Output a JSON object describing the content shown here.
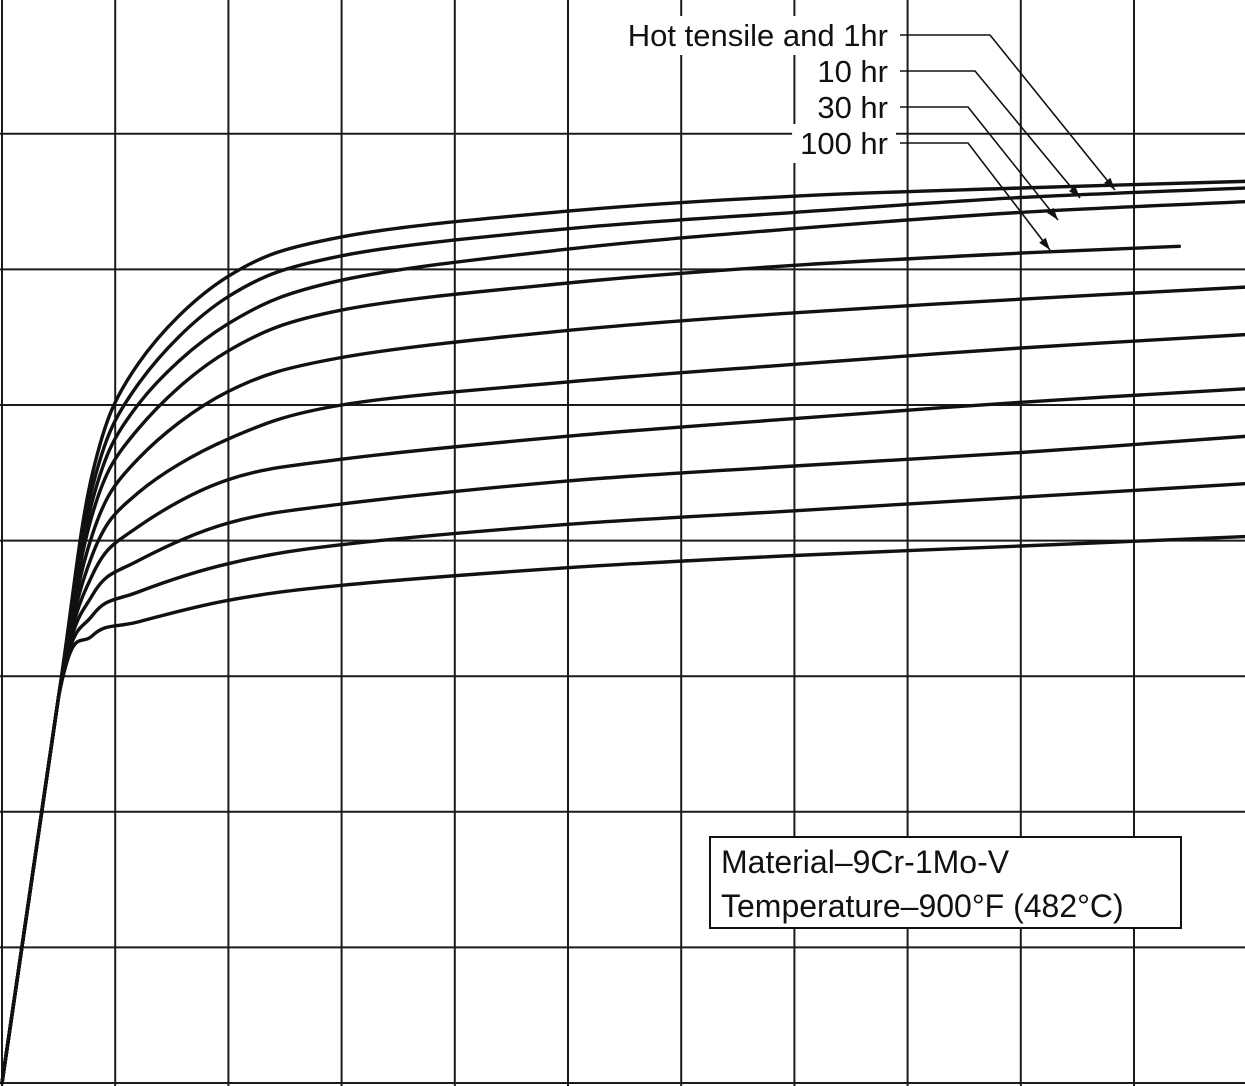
{
  "chart_data": {
    "type": "line",
    "title": "",
    "xlabel": "",
    "ylabel": "",
    "grid": true,
    "xlim": [
      0,
      11
    ],
    "ylim": [
      0,
      8
    ],
    "series": [
      {
        "name": "Hot tensile and 1hr",
        "values": [
          [
            0.0,
            0.0
          ],
          [
            0.5,
            2.85
          ],
          [
            0.8,
            4.5
          ],
          [
            1.2,
            5.3
          ],
          [
            2.0,
            5.95
          ],
          [
            3.0,
            6.24
          ],
          [
            5.0,
            6.43
          ],
          [
            7.0,
            6.54
          ],
          [
            9.0,
            6.6
          ],
          [
            11.0,
            6.65
          ]
        ]
      },
      {
        "name": "10 hr",
        "values": [
          [
            0.0,
            0.0
          ],
          [
            0.5,
            2.85
          ],
          [
            0.8,
            4.4
          ],
          [
            1.2,
            5.15
          ],
          [
            2.0,
            5.8
          ],
          [
            3.0,
            6.1
          ],
          [
            5.0,
            6.3
          ],
          [
            7.0,
            6.42
          ],
          [
            9.0,
            6.53
          ],
          [
            11.0,
            6.6
          ]
        ]
      },
      {
        "name": "30 hr",
        "values": [
          [
            0.0,
            0.0
          ],
          [
            0.5,
            2.85
          ],
          [
            0.8,
            4.3
          ],
          [
            1.2,
            5.0
          ],
          [
            2.0,
            5.6
          ],
          [
            3.0,
            5.92
          ],
          [
            5.0,
            6.15
          ],
          [
            7.0,
            6.3
          ],
          [
            9.0,
            6.42
          ],
          [
            11.0,
            6.5
          ]
        ]
      },
      {
        "name": "100 hr",
        "values": [
          [
            0.0,
            0.0
          ],
          [
            0.5,
            2.85
          ],
          [
            0.8,
            4.2
          ],
          [
            1.2,
            4.82
          ],
          [
            2.0,
            5.4
          ],
          [
            3.0,
            5.7
          ],
          [
            5.0,
            5.9
          ],
          [
            7.0,
            6.03
          ],
          [
            9.0,
            6.12
          ],
          [
            10.4,
            6.17
          ]
        ]
      },
      {
        "name": "",
        "values": [
          [
            0.0,
            0.0
          ],
          [
            0.5,
            2.85
          ],
          [
            0.8,
            4.05
          ],
          [
            1.2,
            4.6
          ],
          [
            2.0,
            5.1
          ],
          [
            3.0,
            5.35
          ],
          [
            5.0,
            5.55
          ],
          [
            7.0,
            5.68
          ],
          [
            9.0,
            5.78
          ],
          [
            11.0,
            5.87
          ]
        ]
      },
      {
        "name": "",
        "values": [
          [
            0.0,
            0.0
          ],
          [
            0.5,
            2.85
          ],
          [
            0.8,
            3.9
          ],
          [
            1.2,
            4.35
          ],
          [
            2.0,
            4.75
          ],
          [
            3.0,
            5.0
          ],
          [
            5.0,
            5.17
          ],
          [
            7.0,
            5.3
          ],
          [
            9.0,
            5.42
          ],
          [
            11.0,
            5.52
          ]
        ]
      },
      {
        "name": "",
        "values": [
          [
            0.0,
            0.0
          ],
          [
            0.5,
            2.85
          ],
          [
            0.8,
            3.75
          ],
          [
            1.2,
            4.1
          ],
          [
            2.0,
            4.45
          ],
          [
            3.0,
            4.6
          ],
          [
            5.0,
            4.77
          ],
          [
            7.0,
            4.9
          ],
          [
            9.0,
            5.02
          ],
          [
            11.0,
            5.12
          ]
        ]
      },
      {
        "name": "",
        "values": [
          [
            0.0,
            0.0
          ],
          [
            0.5,
            2.85
          ],
          [
            0.8,
            3.6
          ],
          [
            1.2,
            3.85
          ],
          [
            2.0,
            4.13
          ],
          [
            3.0,
            4.27
          ],
          [
            5.0,
            4.44
          ],
          [
            7.0,
            4.55
          ],
          [
            9.0,
            4.65
          ],
          [
            11.0,
            4.77
          ]
        ]
      },
      {
        "name": "",
        "values": [
          [
            0.0,
            0.0
          ],
          [
            0.5,
            2.85
          ],
          [
            0.8,
            3.45
          ],
          [
            1.2,
            3.62
          ],
          [
            2.0,
            3.83
          ],
          [
            3.0,
            3.97
          ],
          [
            5.0,
            4.12
          ],
          [
            7.0,
            4.22
          ],
          [
            9.0,
            4.32
          ],
          [
            11.0,
            4.42
          ]
        ]
      },
      {
        "name": "",
        "values": [
          [
            0.0,
            0.0
          ],
          [
            0.5,
            2.85
          ],
          [
            0.8,
            3.3
          ],
          [
            1.2,
            3.4
          ],
          [
            2.0,
            3.56
          ],
          [
            3.0,
            3.67
          ],
          [
            5.0,
            3.8
          ],
          [
            7.0,
            3.89
          ],
          [
            9.0,
            3.96
          ],
          [
            11.0,
            4.03
          ]
        ]
      }
    ],
    "annotations": [
      "Hot tensile and 1hr",
      "10 hr",
      "30 hr",
      "100 hr"
    ],
    "info_box": [
      "Material–9Cr-1Mo-V",
      "Temperature–900°F (482°C)"
    ]
  }
}
